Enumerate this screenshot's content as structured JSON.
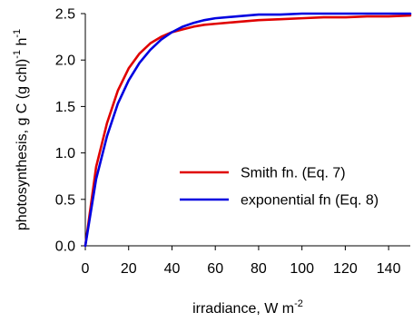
{
  "chart_data": {
    "type": "line",
    "title": "",
    "xlabel": "irradiance, W m",
    "xlabel_sup": "-2",
    "ylabel_parts": [
      {
        "text": "photosynthesis, g C (g chl)",
        "sup": false
      },
      {
        "text": "-1",
        "sup": true
      },
      {
        "text": " h",
        "sup": false
      },
      {
        "text": "-1",
        "sup": true
      }
    ],
    "xlim": [
      0,
      150
    ],
    "ylim": [
      0.0,
      2.5
    ],
    "xticks": [
      "0",
      "20",
      "40",
      "60",
      "80",
      "100",
      "120",
      "140"
    ],
    "yticks": [
      "0.0",
      "0.5",
      "1.0",
      "1.5",
      "2.0",
      "2.5"
    ],
    "grid": false,
    "legend_position": "center-right",
    "x": [
      0,
      5,
      10,
      15,
      20,
      25,
      30,
      35,
      40,
      45,
      50,
      55,
      60,
      70,
      80,
      90,
      100,
      110,
      120,
      130,
      140,
      150
    ],
    "series": [
      {
        "name": "Smith fn. (Eq. 7)",
        "color": "#e00000",
        "values": [
          0.0,
          0.85,
          1.32,
          1.67,
          1.91,
          2.07,
          2.18,
          2.25,
          2.3,
          2.33,
          2.36,
          2.38,
          2.39,
          2.41,
          2.43,
          2.44,
          2.45,
          2.46,
          2.46,
          2.47,
          2.47,
          2.48
        ]
      },
      {
        "name": "exponential fn (Eq. 8)",
        "color": "#0000e0",
        "values": [
          0.0,
          0.72,
          1.18,
          1.53,
          1.78,
          1.97,
          2.11,
          2.22,
          2.3,
          2.36,
          2.4,
          2.43,
          2.45,
          2.47,
          2.49,
          2.49,
          2.5,
          2.5,
          2.5,
          2.5,
          2.5,
          2.5
        ]
      }
    ]
  }
}
